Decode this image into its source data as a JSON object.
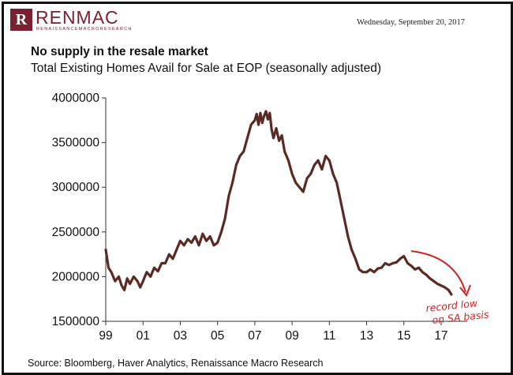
{
  "header": {
    "logo_initials": "R",
    "logo_word": "RENMAC",
    "logo_tagline": "RENAISSANCEMACRORESEARCH",
    "date": "Wednesday, September 20, 2017"
  },
  "chart_data": {
    "type": "line",
    "title": "No supply in the resale market",
    "subtitle": "Total Existing Homes Avail for Sale at EOP (seasonally adjusted)",
    "source": "Source: Bloomberg, Haver Analytics, Renaissance Macro Research",
    "xlabel": "",
    "ylabel": "",
    "xlim": [
      1999,
      2018.4
    ],
    "ylim": [
      1500000,
      4000000
    ],
    "x_tick_values": [
      1999,
      2001,
      2003,
      2005,
      2007,
      2009,
      2011,
      2013,
      2015,
      2017
    ],
    "x_tick_labels": [
      "99",
      "01",
      "03",
      "05",
      "07",
      "09",
      "11",
      "13",
      "15",
      "17"
    ],
    "y_ticks": [
      "1500000",
      "2000000",
      "2500000",
      "3000000",
      "3500000",
      "4000000"
    ],
    "y_tick_values": [
      1500000,
      2000000,
      2500000,
      3000000,
      3500000,
      4000000
    ],
    "grid": false,
    "line_color": "#5a2a24",
    "series": [
      {
        "name": "Total Existing Homes Available for Sale",
        "x": [
          1999.0,
          1999.15,
          1999.3,
          1999.5,
          1999.7,
          1999.85,
          2000.0,
          2000.15,
          2000.3,
          2000.5,
          2000.7,
          2000.85,
          2001.0,
          2001.2,
          2001.4,
          2001.6,
          2001.8,
          2002.0,
          2002.2,
          2002.4,
          2002.6,
          2002.8,
          2003.0,
          2003.2,
          2003.4,
          2003.6,
          2003.8,
          2004.0,
          2004.2,
          2004.4,
          2004.6,
          2004.8,
          2005.0,
          2005.2,
          2005.4,
          2005.6,
          2005.8,
          2006.0,
          2006.2,
          2006.4,
          2006.6,
          2006.8,
          2007.0,
          2007.1,
          2007.2,
          2007.3,
          2007.4,
          2007.5,
          2007.6,
          2007.7,
          2007.8,
          2007.9,
          2008.0,
          2008.15,
          2008.3,
          2008.45,
          2008.6,
          2008.8,
          2009.0,
          2009.2,
          2009.4,
          2009.6,
          2009.8,
          2010.0,
          2010.2,
          2010.4,
          2010.6,
          2010.8,
          2011.0,
          2011.2,
          2011.4,
          2011.6,
          2011.8,
          2012.0,
          2012.2,
          2012.4,
          2012.6,
          2012.8,
          2013.0,
          2013.2,
          2013.4,
          2013.6,
          2013.8,
          2014.0,
          2014.2,
          2014.4,
          2014.6,
          2014.8,
          2015.0,
          2015.2,
          2015.4,
          2015.6,
          2015.8,
          2016.0,
          2016.2,
          2016.4,
          2016.6,
          2016.8,
          2017.0,
          2017.2,
          2017.4,
          2017.55
        ],
        "values": [
          2300000,
          2100000,
          2050000,
          1950000,
          2000000,
          1900000,
          1850000,
          1980000,
          1920000,
          2000000,
          1950000,
          1880000,
          1950000,
          2050000,
          2000000,
          2100000,
          2060000,
          2150000,
          2150000,
          2250000,
          2200000,
          2300000,
          2400000,
          2350000,
          2420000,
          2380000,
          2450000,
          2350000,
          2480000,
          2400000,
          2450000,
          2350000,
          2380000,
          2500000,
          2650000,
          2900000,
          3050000,
          3250000,
          3350000,
          3400000,
          3550000,
          3700000,
          3750000,
          3820000,
          3700000,
          3830000,
          3720000,
          3800000,
          3850000,
          3760000,
          3830000,
          3650000,
          3550000,
          3660000,
          3520000,
          3580000,
          3400000,
          3300000,
          3150000,
          3050000,
          3000000,
          2950000,
          3100000,
          3150000,
          3250000,
          3300000,
          3200000,
          3350000,
          3300000,
          3150000,
          3050000,
          2850000,
          2650000,
          2450000,
          2300000,
          2200000,
          2080000,
          2050000,
          2050000,
          2080000,
          2050000,
          2090000,
          2100000,
          2150000,
          2130000,
          2150000,
          2160000,
          2200000,
          2230000,
          2150000,
          2120000,
          2080000,
          2100000,
          2050000,
          2020000,
          1980000,
          1950000,
          1920000,
          1900000,
          1880000,
          1850000,
          1800000
        ]
      }
    ],
    "annotation": {
      "line1": "record low",
      "line2": "on SA basis",
      "color": "#d42020"
    }
  }
}
